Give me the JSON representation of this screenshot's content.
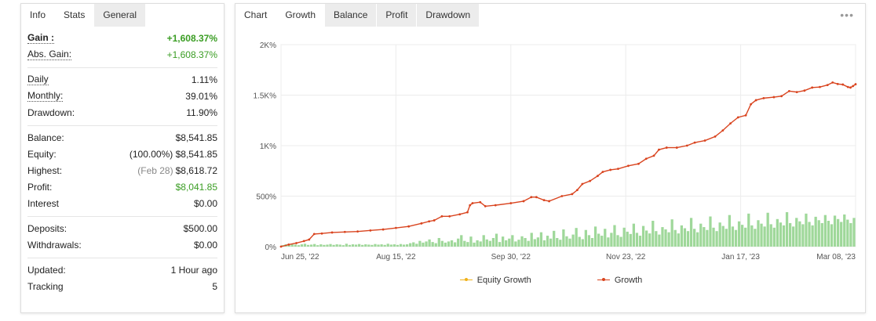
{
  "left_tabs": [
    "Info",
    "Stats",
    "General"
  ],
  "stats": {
    "gain": {
      "label": "Gain :",
      "value": "+1,608.37%"
    },
    "abs_gain": {
      "label": "Abs. Gain:",
      "value": "+1,608.37%"
    },
    "daily": {
      "label": "Daily",
      "value": "1.11%"
    },
    "monthly": {
      "label": "Monthly:",
      "value": "39.01%"
    },
    "drawdown": {
      "label": "Drawdown:",
      "value": "11.90%"
    },
    "balance": {
      "label": "Balance:",
      "value": "$8,541.85"
    },
    "equity": {
      "label": "Equity:",
      "prefix": "(100.00%)",
      "value": "$8,541.85"
    },
    "highest": {
      "label": "Highest:",
      "prefix": "(Feb 28)",
      "value": "$8,618.72"
    },
    "profit": {
      "label": "Profit:",
      "value": "$8,041.85"
    },
    "interest": {
      "label": "Interest",
      "value": "$0.00"
    },
    "deposits": {
      "label": "Deposits:",
      "value": "$500.00"
    },
    "withdrawals": {
      "label": "Withdrawals:",
      "value": "$0.00"
    },
    "updated": {
      "label": "Updated:",
      "value": "1 Hour ago"
    },
    "tracking": {
      "label": "Tracking",
      "value": "5"
    }
  },
  "right_tabs": {
    "label": "Chart",
    "items": [
      "Growth",
      "Balance",
      "Profit",
      "Drawdown"
    ],
    "active": "Growth"
  },
  "menu_icon": "more-dots-icon",
  "colors": {
    "growth": "#d9441f",
    "equity": "#f0b21a",
    "bars": "#9fd89a",
    "green_text": "#3a9d23"
  },
  "chart_data": {
    "type": "line",
    "title": "",
    "xlabel": "",
    "ylabel": "",
    "y_ticks": [
      "0%",
      "500%",
      "1K%",
      "1.5K%",
      "2K%"
    ],
    "y_range": [
      0,
      2000
    ],
    "x_ticks": [
      "Jun 25, '22",
      "Aug 15, '22",
      "Sep 30, '22",
      "Nov 23, '22",
      "Jan 17, '23",
      "Mar 08, '23"
    ],
    "legend": [
      "Equity Growth",
      "Growth"
    ],
    "legend_position": "bottom",
    "grid": true,
    "growth_series": [
      [
        0,
        0
      ],
      [
        3,
        20
      ],
      [
        6,
        35
      ],
      [
        9,
        55
      ],
      [
        11,
        70
      ],
      [
        13,
        125
      ],
      [
        16,
        130
      ],
      [
        20,
        140
      ],
      [
        25,
        145
      ],
      [
        30,
        150
      ],
      [
        35,
        160
      ],
      [
        40,
        170
      ],
      [
        45,
        185
      ],
      [
        50,
        200
      ],
      [
        55,
        230
      ],
      [
        58,
        250
      ],
      [
        60,
        260
      ],
      [
        63,
        300
      ],
      [
        66,
        300
      ],
      [
        70,
        320
      ],
      [
        73,
        340
      ],
      [
        74,
        410
      ],
      [
        75,
        430
      ],
      [
        78,
        440
      ],
      [
        80,
        400
      ],
      [
        84,
        410
      ],
      [
        90,
        430
      ],
      [
        95,
        450
      ],
      [
        98,
        490
      ],
      [
        100,
        490
      ],
      [
        103,
        460
      ],
      [
        105,
        450
      ],
      [
        110,
        500
      ],
      [
        114,
        520
      ],
      [
        116,
        560
      ],
      [
        118,
        620
      ],
      [
        121,
        650
      ],
      [
        124,
        700
      ],
      [
        126,
        740
      ],
      [
        129,
        760
      ],
      [
        132,
        770
      ],
      [
        136,
        800
      ],
      [
        140,
        820
      ],
      [
        143,
        870
      ],
      [
        146,
        900
      ],
      [
        148,
        960
      ],
      [
        151,
        980
      ],
      [
        155,
        980
      ],
      [
        159,
        1000
      ],
      [
        162,
        1030
      ],
      [
        166,
        1050
      ],
      [
        170,
        1090
      ],
      [
        173,
        1150
      ],
      [
        176,
        1220
      ],
      [
        179,
        1280
      ],
      [
        182,
        1300
      ],
      [
        184,
        1410
      ],
      [
        186,
        1450
      ],
      [
        189,
        1470
      ],
      [
        193,
        1480
      ],
      [
        196,
        1490
      ],
      [
        199,
        1540
      ],
      [
        202,
        1530
      ],
      [
        205,
        1545
      ],
      [
        208,
        1575
      ],
      [
        211,
        1580
      ],
      [
        214,
        1600
      ],
      [
        216,
        1625
      ],
      [
        218,
        1610
      ],
      [
        220,
        1605
      ],
      [
        222,
        1580
      ],
      [
        223,
        1575
      ],
      [
        224,
        1590
      ],
      [
        225,
        1608
      ]
    ],
    "volume_bars": [
      5,
      8,
      6,
      9,
      7,
      5,
      8,
      10,
      6,
      7,
      9,
      5,
      8,
      6,
      7,
      9,
      6,
      8,
      7,
      5,
      10,
      6,
      8,
      7,
      9,
      6,
      8,
      7,
      6,
      9,
      7,
      8,
      6,
      10,
      7,
      8,
      6,
      9,
      7,
      8,
      12,
      15,
      10,
      20,
      14,
      18,
      25,
      16,
      12,
      30,
      20,
      14,
      18,
      22,
      15,
      28,
      40,
      20,
      16,
      35,
      14,
      22,
      18,
      40,
      25,
      20,
      30,
      45,
      16,
      35,
      22,
      28,
      40,
      18,
      24,
      36,
      30,
      20,
      48,
      26,
      32,
      50,
      22,
      38,
      28,
      55,
      30,
      24,
      60,
      36,
      28,
      42,
      65,
      34,
      26,
      58,
      40,
      30,
      70,
      45,
      38,
      62,
      32,
      48,
      75,
      40,
      34,
      66,
      52,
      44,
      80,
      48,
      38,
      72,
      56,
      46,
      90,
      54,
      42,
      68,
      60,
      50,
      95,
      58,
      46,
      74,
      64,
      54,
      100,
      62,
      50,
      80,
      68,
      58,
      105,
      66,
      54,
      84,
      72,
      62,
      110,
      70,
      58,
      88,
      76,
      66,
      115,
      74,
      62,
      92,
      80,
      70,
      118,
      78,
      66,
      96,
      84,
      74,
      120,
      82,
      70,
      100,
      88,
      78,
      115,
      86,
      74,
      104,
      92,
      82,
      110,
      90,
      78,
      108,
      96,
      86,
      112,
      94,
      82,
      100
    ]
  }
}
